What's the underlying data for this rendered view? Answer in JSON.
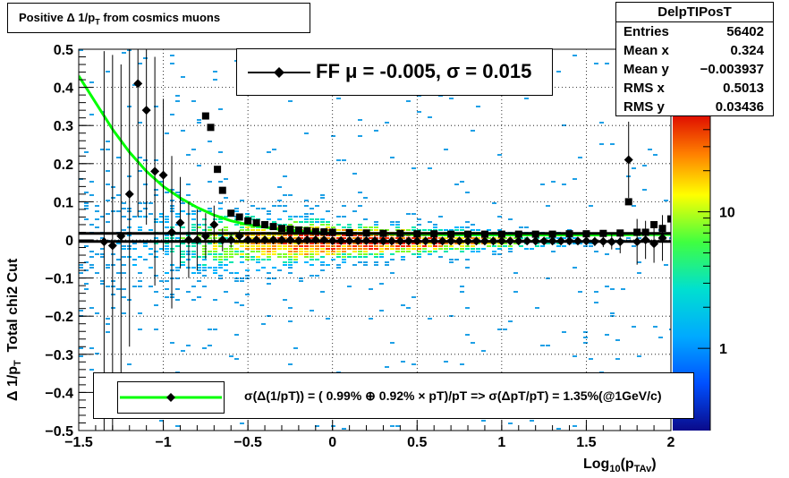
{
  "title": "Positive Δ 1/p_T from cosmics muons",
  "title_parts": {
    "main": "Positive Δ 1/p",
    "sub": "T",
    "rest": " from cosmics muons"
  },
  "stats": {
    "name": "DelpTIPosT",
    "rows": [
      {
        "label": "Entries",
        "value": "56402"
      },
      {
        "label": "Mean x",
        "value": "0.324"
      },
      {
        "label": "Mean y",
        "value": "−0.003937"
      },
      {
        "label": "RMS x",
        "value": "0.5013"
      },
      {
        "label": "RMS y",
        "value": "0.03436"
      }
    ]
  },
  "legend_ff": {
    "text": "FF μ = -0.005, σ =   0.015"
  },
  "legend_sigma": {
    "text": "σ(Δ(1/pT)) = ( 0.99% ⊕  0.92% × pT)/pT => σ(ΔpT/pT) =  1.35%(@1GeV/c)"
  },
  "colors": {
    "green_fit": "#00ff00",
    "markers": "#000000",
    "frame": "#000000"
  },
  "chart_data": {
    "type": "heatmap",
    "title": "Positive Δ 1/p_T from cosmics muons",
    "xlabel": "Log10(p_TAv)",
    "ylabel": "Δ 1/p_T  Total chi2 Cut",
    "xlim": [
      -1.5,
      2
    ],
    "ylim": [
      -0.5,
      0.5
    ],
    "xticks": [
      -1.5,
      -1,
      -0.5,
      0,
      0.5,
      1,
      1.5,
      2
    ],
    "xtick_labels": [
      "−1.5",
      "−1",
      "−0.5",
      "0",
      "0.5",
      "1",
      "1.5",
      "2"
    ],
    "yticks": [
      -0.5,
      -0.4,
      -0.3,
      -0.2,
      -0.1,
      0,
      0.1,
      0.2,
      0.3,
      0.4,
      0.5
    ],
    "ytick_labels": [
      "−0.5",
      "−0.4",
      "−0.3",
      "−0.2",
      "−0.1",
      "0",
      "0.1",
      "0.2",
      "0.3",
      "0.4",
      "0.5"
    ],
    "grid": true,
    "colorbar": {
      "scale": "log",
      "ticks": [
        1,
        10
      ],
      "tick_labels": [
        "1",
        "10"
      ]
    },
    "series": [
      {
        "name": "mean",
        "marker": "diamond",
        "x": [
          -1.35,
          -1.3,
          -1.25,
          -1.2,
          -1.15,
          -1.1,
          -1.05,
          -1.0,
          -0.95,
          -0.9,
          -0.85,
          -0.8,
          -0.75,
          -0.7,
          -0.65,
          -0.6,
          -0.55,
          -0.5,
          -0.45,
          -0.4,
          -0.35,
          -0.3,
          -0.25,
          -0.2,
          -0.15,
          -0.1,
          -0.05,
          0.0,
          0.05,
          0.1,
          0.15,
          0.2,
          0.25,
          0.3,
          0.35,
          0.4,
          0.45,
          0.5,
          0.55,
          0.6,
          0.65,
          0.7,
          0.75,
          0.8,
          0.85,
          0.9,
          0.95,
          1.0,
          1.05,
          1.1,
          1.15,
          1.2,
          1.25,
          1.3,
          1.35,
          1.4,
          1.45,
          1.5,
          1.55,
          1.6,
          1.65,
          1.7,
          1.75,
          1.8,
          1.85,
          1.9,
          1.95
        ],
        "y": [
          -0.005,
          -0.015,
          0.01,
          0.12,
          0.41,
          0.34,
          0.18,
          0.17,
          0.02,
          0.045,
          0.0,
          0.0,
          0.01,
          0.04,
          0.0,
          0.0,
          0.01,
          0.0,
          0.0,
          0.0,
          0.0,
          0.0,
          0.0,
          -0.002,
          0.0,
          0.0,
          0.0,
          -0.002,
          -0.002,
          -0.002,
          -0.002,
          -0.002,
          -0.002,
          -0.003,
          -0.003,
          -0.003,
          -0.003,
          -0.003,
          -0.003,
          -0.003,
          -0.003,
          -0.003,
          -0.003,
          -0.003,
          -0.003,
          -0.003,
          -0.003,
          -0.003,
          -0.003,
          -0.003,
          -0.003,
          -0.003,
          -0.003,
          -0.003,
          -0.003,
          -0.003,
          -0.003,
          -0.003,
          -0.004,
          -0.004,
          -0.005,
          -0.005,
          0.21,
          -0.005,
          0.0,
          -0.01,
          0.005
        ],
        "yerr": [
          0.5,
          0.5,
          0.45,
          0.4,
          0.35,
          0.3,
          0.3,
          0.2,
          0.2,
          0.12,
          0.1,
          0.08,
          0.06,
          0.05,
          0.03,
          0.02,
          0.015,
          0.01,
          0.01,
          0.008,
          0.006,
          0.005,
          0.004,
          0.004,
          0.004,
          0.003,
          0.003,
          0.003,
          0.003,
          0.003,
          0.003,
          0.003,
          0.003,
          0.003,
          0.003,
          0.003,
          0.003,
          0.003,
          0.003,
          0.003,
          0.003,
          0.003,
          0.003,
          0.004,
          0.004,
          0.004,
          0.004,
          0.004,
          0.004,
          0.005,
          0.005,
          0.005,
          0.006,
          0.006,
          0.007,
          0.008,
          0.009,
          0.01,
          0.012,
          0.015,
          0.02,
          0.03,
          0.1,
          0.06,
          0.05,
          0.05,
          0.06
        ]
      },
      {
        "name": "sigma",
        "marker": "square",
        "x": [
          -0.75,
          -0.72,
          -0.68,
          -0.65,
          -0.6,
          -0.55,
          -0.5,
          -0.45,
          -0.4,
          -0.35,
          -0.3,
          -0.25,
          -0.2,
          -0.15,
          -0.1,
          -0.05,
          0.0,
          0.1,
          0.2,
          0.3,
          0.4,
          0.5,
          0.6,
          0.7,
          0.8,
          0.9,
          1.0,
          1.1,
          1.2,
          1.3,
          1.4,
          1.5,
          1.6,
          1.7,
          1.75,
          1.8,
          1.85,
          1.9,
          1.95,
          2.0
        ],
        "y": [
          0.325,
          0.295,
          0.185,
          0.13,
          0.07,
          0.06,
          0.05,
          0.045,
          0.04,
          0.035,
          0.03,
          0.028,
          0.026,
          0.024,
          0.022,
          0.021,
          0.02,
          0.019,
          0.018,
          0.017,
          0.017,
          0.016,
          0.016,
          0.015,
          0.015,
          0.015,
          0.015,
          0.015,
          0.015,
          0.015,
          0.016,
          0.016,
          0.017,
          0.018,
          0.1,
          0.02,
          0.02,
          0.04,
          0.03,
          0.055
        ]
      }
    ],
    "fits": [
      {
        "name": "green fit",
        "color": "#00ff00",
        "type": "sigma resolution curve",
        "x": [
          -1.5,
          -1.4,
          -1.3,
          -1.2,
          -1.1,
          -1.0,
          -0.9,
          -0.8,
          -0.7,
          -0.6,
          -0.5,
          -0.4,
          -0.3,
          -0.2,
          0.0,
          0.5,
          1.0,
          1.5,
          2.0
        ],
        "y": [
          0.43,
          0.36,
          0.29,
          0.23,
          0.18,
          0.14,
          0.11,
          0.085,
          0.065,
          0.05,
          0.04,
          0.033,
          0.027,
          0.023,
          0.018,
          0.014,
          0.013,
          0.013,
          0.014
        ]
      },
      {
        "name": "black line upper",
        "color": "#000000",
        "x": [
          -1.5,
          2.0
        ],
        "y": [
          0.017,
          0.017
        ]
      },
      {
        "name": "black line lower",
        "color": "#000000",
        "x": [
          -1.5,
          2.0
        ],
        "y": [
          -0.004,
          -0.004
        ]
      }
    ]
  }
}
